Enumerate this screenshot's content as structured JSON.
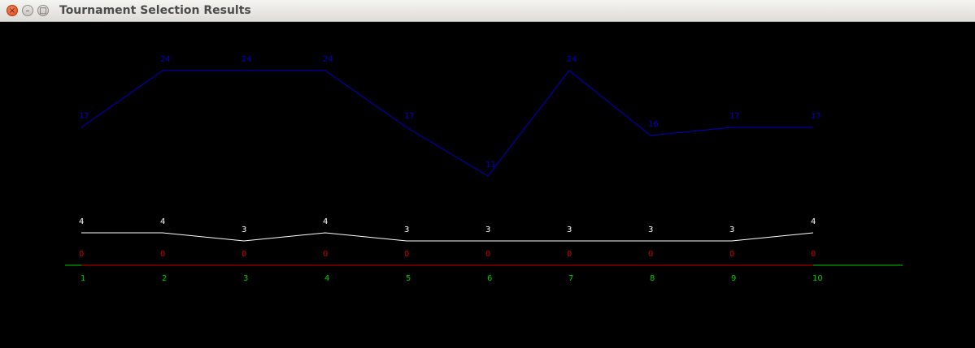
{
  "window": {
    "title": "Tournament Selection Results",
    "close_icon": "×",
    "minimize_icon": "–",
    "maximize_icon": "□"
  },
  "chart_data": {
    "type": "line",
    "categories": [
      "1",
      "2",
      "3",
      "4",
      "5",
      "6",
      "7",
      "8",
      "9",
      "10"
    ],
    "series": [
      {
        "values": [
          17,
          24,
          24,
          24,
          17,
          11,
          24,
          16,
          17,
          17
        ],
        "color": "#0000cc"
      },
      {
        "values": [
          4,
          4,
          3,
          4,
          3,
          3,
          3,
          3,
          3,
          4
        ],
        "color": "#ffffff"
      },
      {
        "values": [
          0,
          0,
          0,
          0,
          0,
          0,
          0,
          0,
          0,
          0
        ],
        "color": "#cc0000"
      }
    ],
    "axis_color": "#00cc00",
    "ylim": [
      0,
      24
    ],
    "grid": false,
    "legend": "none"
  }
}
